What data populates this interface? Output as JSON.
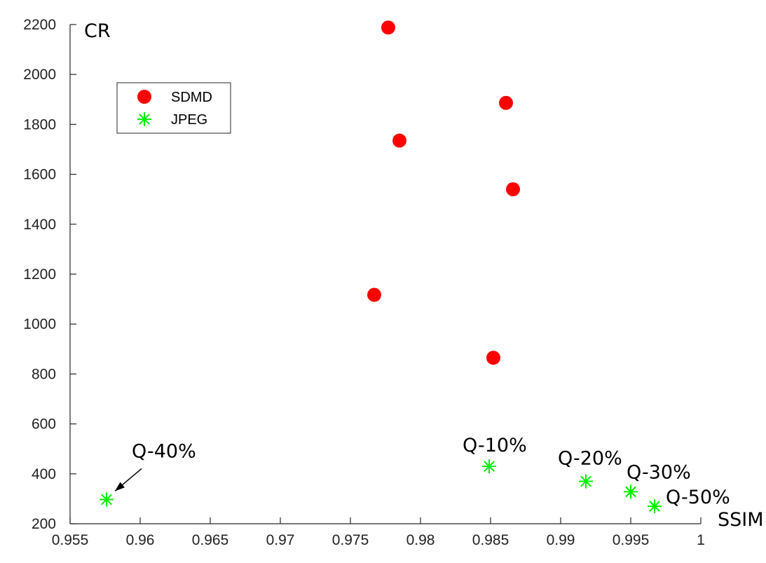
{
  "chart_data": {
    "type": "scatter",
    "title": "",
    "xlabel": "SSIM",
    "ylabel": "CR",
    "xlim": [
      0.955,
      1.0
    ],
    "ylim": [
      200,
      2200
    ],
    "xticks": [
      0.955,
      0.96,
      0.965,
      0.97,
      0.975,
      0.98,
      0.985,
      0.99,
      0.995,
      1
    ],
    "xtick_labels": [
      "0.955",
      "0.96",
      "0.965",
      "0.97",
      "0.975",
      "0.98",
      "0.985",
      "0.99",
      "0.995",
      "1"
    ],
    "yticks": [
      200,
      400,
      600,
      800,
      1000,
      1200,
      1400,
      1600,
      1800,
      2000,
      2200
    ],
    "ytick_labels": [
      "200",
      "400",
      "600",
      "800",
      "1000",
      "1200",
      "1400",
      "1600",
      "1800",
      "2000",
      "2200"
    ],
    "grid": false,
    "legend_position": "upper-left",
    "series": [
      {
        "name": "SDMD",
        "marker": "circle",
        "color": "#ff0000",
        "points": [
          {
            "x": 0.9777,
            "y": 2188
          },
          {
            "x": 0.9861,
            "y": 1886
          },
          {
            "x": 0.9785,
            "y": 1735
          },
          {
            "x": 0.9866,
            "y": 1540
          },
          {
            "x": 0.9767,
            "y": 1117
          },
          {
            "x": 0.9852,
            "y": 865
          }
        ]
      },
      {
        "name": "JPEG",
        "marker": "asterisk",
        "color": "#00ee00",
        "points": [
          {
            "x": 0.9576,
            "y": 297
          },
          {
            "x": 0.9849,
            "y": 430
          },
          {
            "x": 0.9918,
            "y": 370
          },
          {
            "x": 0.995,
            "y": 328
          },
          {
            "x": 0.9967,
            "y": 270
          }
        ]
      }
    ],
    "annotations": [
      {
        "text": "Q-40%",
        "x": 0.9576,
        "y": 297,
        "arrow": true
      },
      {
        "text": "Q-10%",
        "x": 0.9849,
        "y": 430
      },
      {
        "text": "Q-20%",
        "x": 0.9918,
        "y": 370
      },
      {
        "text": "Q-30%",
        "x": 0.995,
        "y": 328
      },
      {
        "text": "Q-50%",
        "x": 0.9967,
        "y": 270
      }
    ]
  }
}
